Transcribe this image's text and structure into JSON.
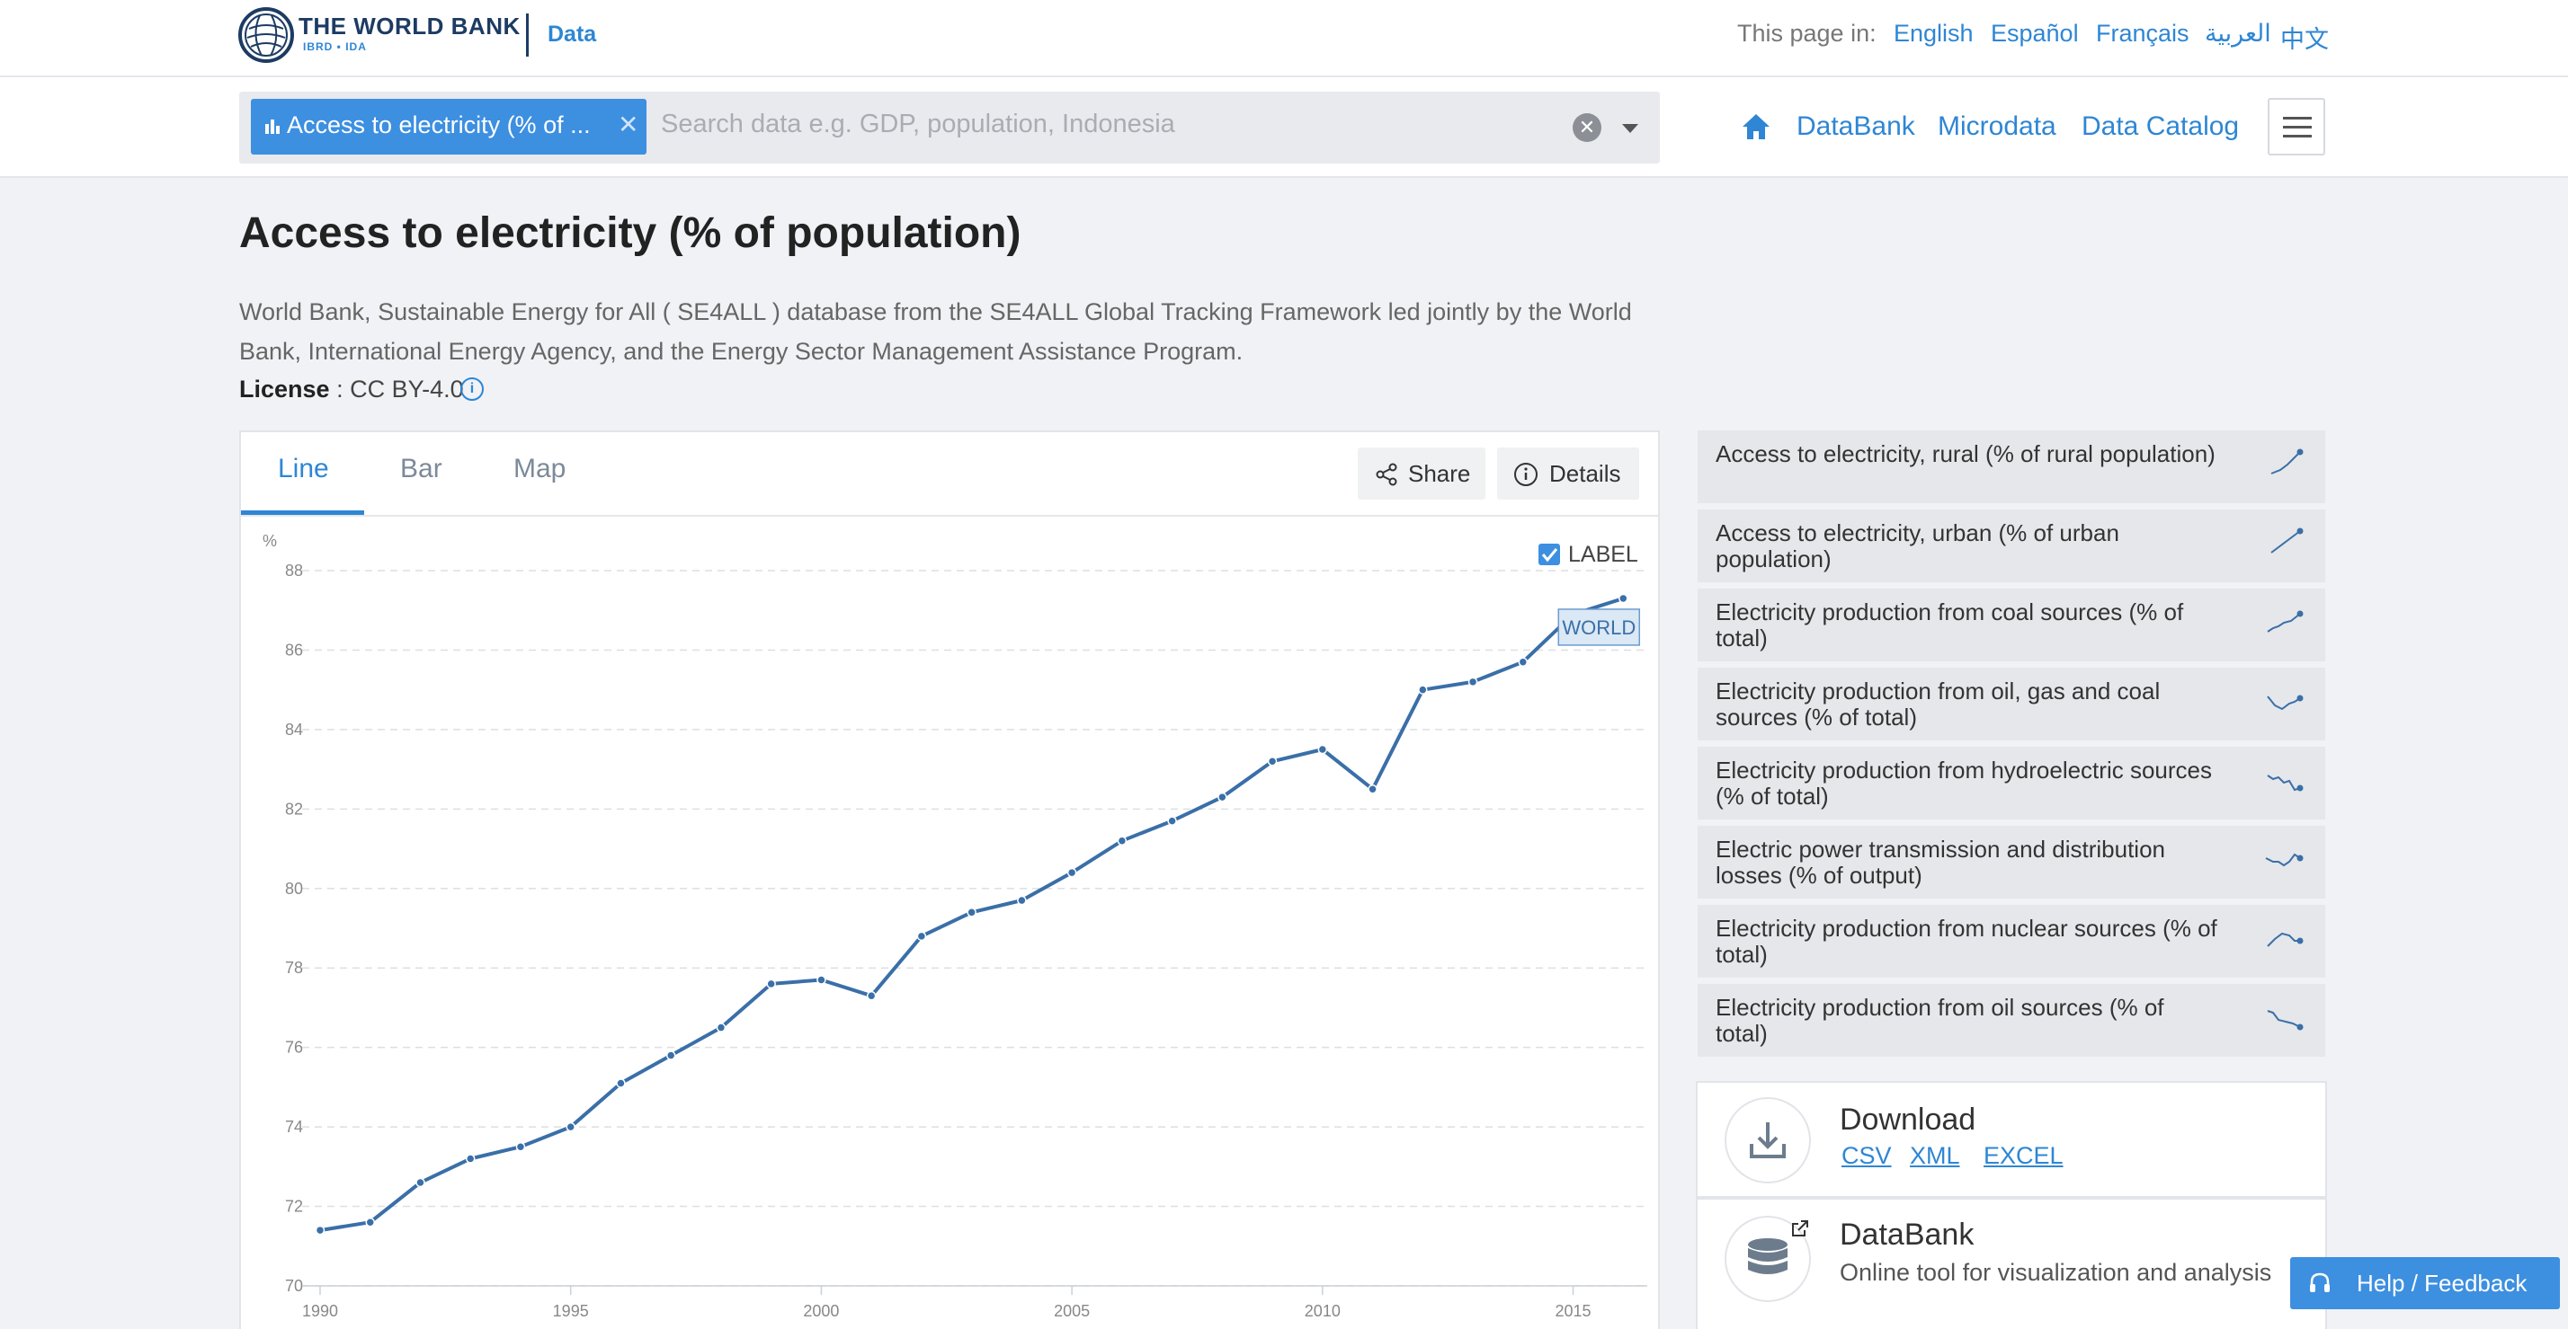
{
  "header": {
    "logo_main": "THE WORLD BANK",
    "logo_sub": "IBRD • IDA",
    "logo_section": "Data",
    "lang_label": "This page in:",
    "languages": [
      "English",
      "Español",
      "Français",
      "العربية",
      "中文"
    ]
  },
  "search": {
    "chip_label": "Access to electricity (% of ...",
    "placeholder": "Search data e.g. GDP, population, Indonesia"
  },
  "nav": {
    "links": [
      "DataBank",
      "Microdata",
      "Data Catalog"
    ]
  },
  "page": {
    "title": "Access to electricity (% of population)",
    "description": "World Bank, Sustainable Energy for All ( SE4ALL ) database from the SE4ALL Global Tracking Framework led jointly by the World Bank, International Energy Agency, and the Energy Sector Management Assistance Program.",
    "license_label": "License",
    "license_value": " : CC BY-4.0"
  },
  "chart_panel": {
    "tabs": [
      "Line",
      "Bar",
      "Map"
    ],
    "active_tab": "Line",
    "share_label": "Share",
    "details_label": "Details",
    "label_toggle": "LABEL",
    "label_checked": true
  },
  "chart_data": {
    "type": "line",
    "ylabel": "%",
    "ylim": [
      70,
      88
    ],
    "yticks": [
      70,
      72,
      74,
      76,
      78,
      80,
      82,
      84,
      86,
      88
    ],
    "xticks": [
      1990,
      1995,
      2000,
      2005,
      2010,
      2015
    ],
    "grid": true,
    "color": "#3a6fa8",
    "series": [
      {
        "name": "WORLD",
        "x": [
          1990,
          1991,
          1992,
          1993,
          1994,
          1995,
          1996,
          1997,
          1998,
          1999,
          2000,
          2001,
          2002,
          2003,
          2004,
          2005,
          2006,
          2007,
          2008,
          2009,
          2010,
          2011,
          2012,
          2013,
          2014,
          2015,
          2016
        ],
        "values": [
          71.4,
          71.6,
          72.6,
          73.2,
          73.5,
          74.0,
          75.1,
          75.8,
          76.5,
          77.6,
          77.7,
          77.3,
          78.8,
          79.4,
          79.7,
          80.4,
          81.2,
          81.7,
          82.3,
          83.2,
          83.5,
          82.5,
          85.0,
          85.2,
          85.7,
          86.9,
          87.3
        ]
      }
    ]
  },
  "related": {
    "items": [
      {
        "label": "Access to electricity, rural (% of rural population)"
      },
      {
        "label": "Access to electricity, urban (% of urban population)"
      },
      {
        "label": "Electricity production from coal sources (% of total)"
      },
      {
        "label": "Electricity production from oil, gas and coal sources (% of total)"
      },
      {
        "label": "Electricity production from hydroelectric sources (% of total)"
      },
      {
        "label": "Electric power transmission and distribution losses (% of output)"
      },
      {
        "label": "Electricity production from nuclear sources (% of total)"
      },
      {
        "label": "Electricity production from oil sources (% of total)"
      }
    ]
  },
  "download": {
    "title": "Download",
    "formats": [
      "CSV",
      "XML",
      "EXCEL"
    ]
  },
  "databank": {
    "title": "DataBank",
    "subtitle": "Online tool for visualization and analysis"
  },
  "feedback": {
    "label": "Help / Feedback"
  },
  "colors": {
    "accent": "#2e86d4",
    "brand_navy": "#1d3b63",
    "line": "#3a6fa8"
  }
}
